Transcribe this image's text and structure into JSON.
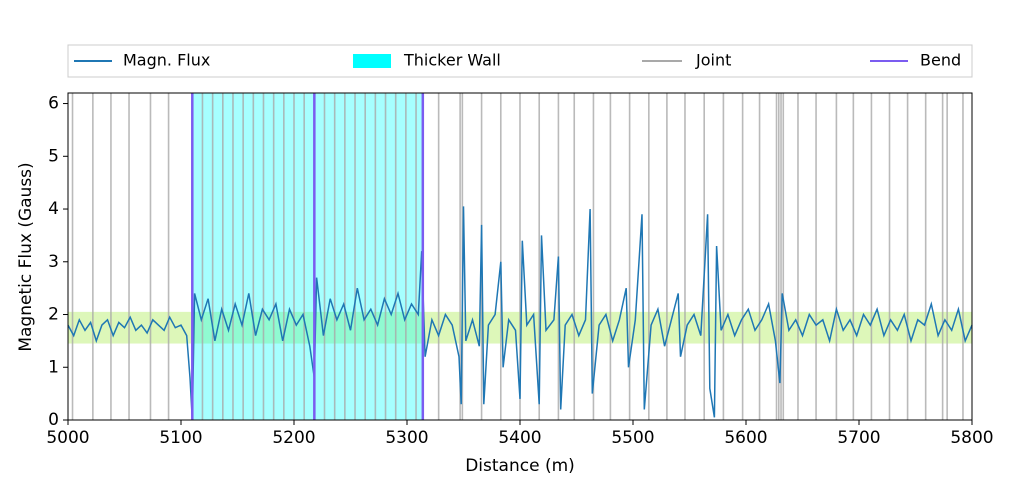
{
  "chart_data": {
    "type": "line",
    "xlabel": "Distance (m)",
    "ylabel": "Magnetic Flux (Gauss)",
    "xlim": [
      5000,
      5800
    ],
    "xticks": [
      5000,
      5100,
      5200,
      5300,
      5400,
      5500,
      5600,
      5700,
      5800
    ],
    "ylim": [
      0,
      6.2
    ],
    "yticks": [
      0,
      1,
      2,
      3,
      4,
      5,
      6
    ],
    "band": {
      "range": [
        1.45,
        2.05
      ],
      "color": "#d4f5a8"
    },
    "thicker_wall": {
      "name": "Thicker Wall",
      "color": "#00ffff",
      "range": [
        5110,
        5314
      ]
    },
    "joints": {
      "name": "Joint",
      "color": "#a9a9a9",
      "x": [
        5004,
        5022,
        5038,
        5054,
        5073,
        5089,
        5119,
        5128,
        5137,
        5146,
        5155,
        5164,
        5173,
        5182,
        5191,
        5200,
        5209,
        5227,
        5236,
        5245,
        5254,
        5263,
        5272,
        5281,
        5290,
        5299,
        5308,
        5328,
        5347,
        5349,
        5366,
        5383,
        5400,
        5417,
        5434,
        5448,
        5465,
        5480,
        5497,
        5514,
        5530,
        5546,
        5563,
        5580,
        5597,
        5612,
        5627,
        5629,
        5631,
        5633,
        5646,
        5662,
        5680,
        5695,
        5711,
        5727,
        5743,
        5759,
        5774,
        5778,
        5792
      ]
    },
    "bends": {
      "name": "Bend",
      "color": "#7b5cf0",
      "x": [
        5110,
        5218,
        5314
      ]
    },
    "legend": "top",
    "series": [
      {
        "name": "Magn. Flux",
        "color": "#1f77b4",
        "x": [
          5000,
          5005,
          5010,
          5015,
          5020,
          5025,
          5030,
          5035,
          5040,
          5045,
          5050,
          5055,
          5060,
          5065,
          5070,
          5075,
          5080,
          5085,
          5090,
          5095,
          5100,
          5105,
          5108,
          5110,
          5112,
          5118,
          5124,
          5130,
          5136,
          5142,
          5148,
          5154,
          5160,
          5166,
          5172,
          5178,
          5184,
          5190,
          5196,
          5202,
          5208,
          5214,
          5218,
          5220,
          5226,
          5232,
          5238,
          5244,
          5250,
          5256,
          5262,
          5268,
          5274,
          5280,
          5286,
          5292,
          5298,
          5304,
          5310,
          5313,
          5316,
          5322,
          5328,
          5334,
          5340,
          5346,
          5348,
          5350,
          5352,
          5358,
          5364,
          5366,
          5368,
          5372,
          5378,
          5383,
          5385,
          5390,
          5396,
          5400,
          5402,
          5406,
          5412,
          5417,
          5419,
          5423,
          5430,
          5434,
          5436,
          5440,
          5446,
          5452,
          5458,
          5462,
          5464,
          5470,
          5476,
          5482,
          5488,
          5494,
          5496,
          5502,
          5508,
          5510,
          5516,
          5522,
          5528,
          5534,
          5540,
          5542,
          5548,
          5554,
          5560,
          5566,
          5568,
          5572,
          5574,
          5578,
          5584,
          5590,
          5596,
          5602,
          5608,
          5614,
          5620,
          5626,
          5630,
          5632,
          5638,
          5644,
          5650,
          5656,
          5662,
          5668,
          5674,
          5680,
          5686,
          5692,
          5698,
          5704,
          5710,
          5716,
          5722,
          5728,
          5734,
          5740,
          5746,
          5752,
          5758,
          5764,
          5770,
          5776,
          5782,
          5788,
          5794,
          5800
        ],
        "values": [
          1.8,
          1.6,
          1.9,
          1.7,
          1.85,
          1.5,
          1.8,
          1.9,
          1.6,
          1.85,
          1.75,
          1.95,
          1.7,
          1.8,
          1.65,
          1.9,
          1.8,
          1.7,
          1.95,
          1.75,
          1.8,
          1.6,
          0.8,
          0,
          2.4,
          1.9,
          2.3,
          1.5,
          2.1,
          1.7,
          2.2,
          1.8,
          2.4,
          1.6,
          2.1,
          1.9,
          2.2,
          1.5,
          2.1,
          1.8,
          2.0,
          1.4,
          0.8,
          2.7,
          1.6,
          2.3,
          1.9,
          2.2,
          1.7,
          2.5,
          1.9,
          2.1,
          1.8,
          2.3,
          2.0,
          2.4,
          1.9,
          2.2,
          2.0,
          3.2,
          1.2,
          1.9,
          1.6,
          2.0,
          1.8,
          1.2,
          0.3,
          4.05,
          1.5,
          1.9,
          1.4,
          3.7,
          0.3,
          1.8,
          2.0,
          3.0,
          1.0,
          1.9,
          1.7,
          0.4,
          3.4,
          1.8,
          2.0,
          0.3,
          3.5,
          1.7,
          1.9,
          3.1,
          0.2,
          1.8,
          2.0,
          1.6,
          1.9,
          4.0,
          0.5,
          1.8,
          2.0,
          1.5,
          1.9,
          2.5,
          1.0,
          1.9,
          3.9,
          0.2,
          1.8,
          2.1,
          1.4,
          1.9,
          2.4,
          1.2,
          1.8,
          2.0,
          1.6,
          3.9,
          0.6,
          0.05,
          3.3,
          1.7,
          2.0,
          1.6,
          1.9,
          2.1,
          1.7,
          1.9,
          2.2,
          1.5,
          0.7,
          2.4,
          1.7,
          1.9,
          1.6,
          2.0,
          1.8,
          1.9,
          1.5,
          2.1,
          1.7,
          1.9,
          1.6,
          2.0,
          1.8,
          2.1,
          1.6,
          1.9,
          1.7,
          2.0,
          1.5,
          1.9,
          1.8,
          2.2,
          1.6,
          1.9,
          1.7,
          2.1,
          1.5,
          1.8
        ]
      }
    ]
  }
}
